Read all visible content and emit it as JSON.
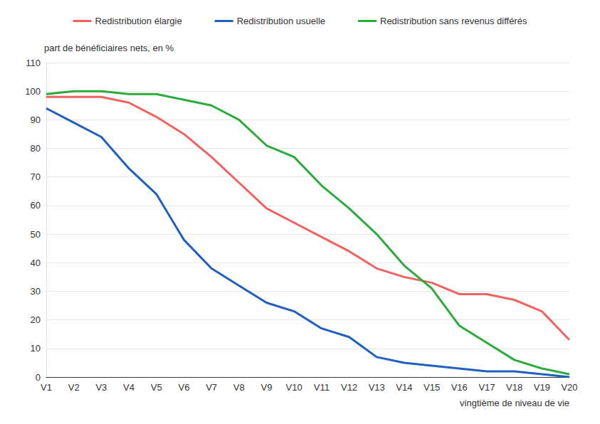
{
  "chart_data": {
    "type": "line",
    "y_label": "part de bénéficiaires nets, en %",
    "x_label": "vingtième de niveau de vie",
    "categories": [
      "V1",
      "V2",
      "V3",
      "V4",
      "V5",
      "V6",
      "V7",
      "V8",
      "V9",
      "V10",
      "V11",
      "V12",
      "V13",
      "V14",
      "V15",
      "V16",
      "V17",
      "V18",
      "V19",
      "V20"
    ],
    "series": [
      {
        "name": "Redistribution élargie",
        "color": "#f0625f",
        "values": [
          98,
          98,
          98,
          96,
          91,
          85,
          77,
          68,
          59,
          54,
          49,
          44,
          38,
          35,
          33,
          29,
          29,
          27,
          23,
          13
        ]
      },
      {
        "name": "Redistribution usuelle",
        "color": "#1f5fbf",
        "values": [
          94,
          89,
          84,
          73,
          64,
          48,
          38,
          32,
          26,
          23,
          17,
          14,
          7,
          5,
          4,
          3,
          2,
          2,
          1,
          0
        ]
      },
      {
        "name": "Redistribution sans revenus différés",
        "color": "#2bab3b",
        "values": [
          99,
          100,
          100,
          99,
          99,
          97,
          95,
          90,
          81,
          77,
          67,
          59,
          50,
          39,
          31,
          18,
          12,
          6,
          3,
          1
        ]
      }
    ],
    "ylim": [
      0,
      110
    ],
    "yticks": [
      0,
      10,
      20,
      30,
      40,
      50,
      60,
      70,
      80,
      90,
      100,
      110
    ],
    "grid": true,
    "legend": "top"
  }
}
